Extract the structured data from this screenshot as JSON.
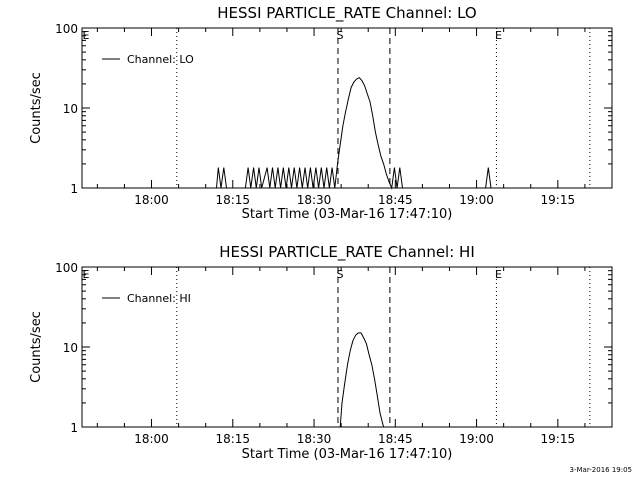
{
  "footer": {
    "timestamp": "3-Mar-2016 19:05"
  },
  "chart_data": [
    {
      "type": "line",
      "title": "HESSI PARTICLE_RATE Channel: LO",
      "xlabel": "Start Time (03-Mar-16 17:47:10)",
      "ylabel": "Counts/sec",
      "yscale": "log",
      "ylim": [
        1,
        100
      ],
      "xlim": [
        "17:47:10",
        "19:25:00"
      ],
      "x_ticks": [
        "18:00",
        "18:15",
        "18:30",
        "18:45",
        "19:00",
        "19:15"
      ],
      "y_ticks": [
        "1",
        "10",
        "100"
      ],
      "legend": {
        "entries": [
          "Channel: LO"
        ],
        "placement": "top-left"
      },
      "markers": [
        {
          "label": "E",
          "time": "17:47:10",
          "style": "none"
        },
        {
          "label": "",
          "time": "18:04:40",
          "style": "dotted"
        },
        {
          "label": "S",
          "time": "18:34:25",
          "style": "dashed"
        },
        {
          "label": "",
          "time": "18:44:00",
          "style": "dashed"
        },
        {
          "label": "E",
          "time": "19:03:40",
          "style": "dotted"
        },
        {
          "label": "",
          "time": "19:20:55",
          "style": "dotted"
        }
      ],
      "series": [
        {
          "x": [
            "18:12:00",
            "18:12:20",
            "18:12:50",
            "18:13:20",
            "18:13:50",
            "18:17:20",
            "18:17:50",
            "18:18:20",
            "18:18:50",
            "18:19:20",
            "18:19:50",
            "18:20:20",
            "18:21:20",
            "18:21:50",
            "18:22:20",
            "18:22:50",
            "18:23:20",
            "18:23:50",
            "18:24:20",
            "18:24:50",
            "18:25:20",
            "18:25:50",
            "18:26:20",
            "18:26:50",
            "18:27:20",
            "18:27:50",
            "18:28:20",
            "18:28:50",
            "18:29:20",
            "18:29:50",
            "18:30:20",
            "18:30:50",
            "18:31:20",
            "18:31:50",
            "18:32:20",
            "18:32:50",
            "18:33:20",
            "18:33:50",
            "18:34:20",
            "18:34:50",
            "18:35:20",
            "18:35:50",
            "18:36:20",
            "18:36:50",
            "18:37:20",
            "18:37:50",
            "18:38:20",
            "18:38:50",
            "18:39:20",
            "18:39:50",
            "18:40:20",
            "18:40:50",
            "18:41:20",
            "18:41:50",
            "18:42:20",
            "18:42:50",
            "18:43:20",
            "18:43:50",
            "18:44:20",
            "18:44:50",
            "18:45:20",
            "18:45:50",
            "18:46:20",
            "18:46:50",
            "19:01:40",
            "19:02:10",
            "19:02:40"
          ],
          "y": [
            1,
            1.8,
            1,
            1.8,
            1,
            1,
            1.8,
            1,
            1.8,
            1,
            1.8,
            1,
            1.8,
            1,
            1.8,
            1,
            1.8,
            1,
            1.8,
            1,
            1.8,
            1,
            1.8,
            1,
            1.8,
            1,
            1.8,
            1,
            1.8,
            1,
            1.8,
            1,
            1.8,
            1,
            1.8,
            1,
            1.8,
            1,
            2,
            3.5,
            6,
            9,
            13,
            18,
            21,
            23,
            24,
            22,
            19,
            15,
            12,
            8,
            5,
            3.5,
            2.5,
            2,
            1.5,
            1.2,
            1,
            1.8,
            1,
            1.8,
            1,
            1,
            1,
            1.8,
            1
          ]
        }
      ]
    },
    {
      "type": "line",
      "title": "HESSI PARTICLE_RATE Channel: HI",
      "xlabel": "Start Time (03-Mar-16 17:47:10)",
      "ylabel": "Counts/sec",
      "yscale": "log",
      "ylim": [
        1,
        100
      ],
      "xlim": [
        "17:47:10",
        "19:25:00"
      ],
      "x_ticks": [
        "18:00",
        "18:15",
        "18:30",
        "18:45",
        "19:00",
        "19:15"
      ],
      "y_ticks": [
        "1",
        "10",
        "100"
      ],
      "legend": {
        "entries": [
          "Channel: HI"
        ],
        "placement": "top-left"
      },
      "markers": [
        {
          "label": "E",
          "time": "17:47:10",
          "style": "none"
        },
        {
          "label": "",
          "time": "18:04:40",
          "style": "dotted"
        },
        {
          "label": "S",
          "time": "18:34:25",
          "style": "dashed"
        },
        {
          "label": "",
          "time": "18:44:00",
          "style": "dashed"
        },
        {
          "label": "E",
          "time": "19:03:40",
          "style": "dotted"
        },
        {
          "label": "",
          "time": "19:20:55",
          "style": "dotted"
        }
      ],
      "series": [
        {
          "x": [
            "18:34:50",
            "18:35:10",
            "18:35:40",
            "18:36:10",
            "18:36:40",
            "18:37:10",
            "18:37:40",
            "18:38:10",
            "18:38:40",
            "18:39:10",
            "18:39:40",
            "18:40:10",
            "18:40:40",
            "18:41:10",
            "18:41:40",
            "18:42:10",
            "18:42:40",
            "18:42:50"
          ],
          "y": [
            1,
            2,
            3.5,
            6,
            9,
            12,
            14,
            15,
            15,
            13,
            11,
            8,
            6,
            4,
            2.5,
            1.5,
            1.1,
            1
          ]
        }
      ]
    }
  ]
}
